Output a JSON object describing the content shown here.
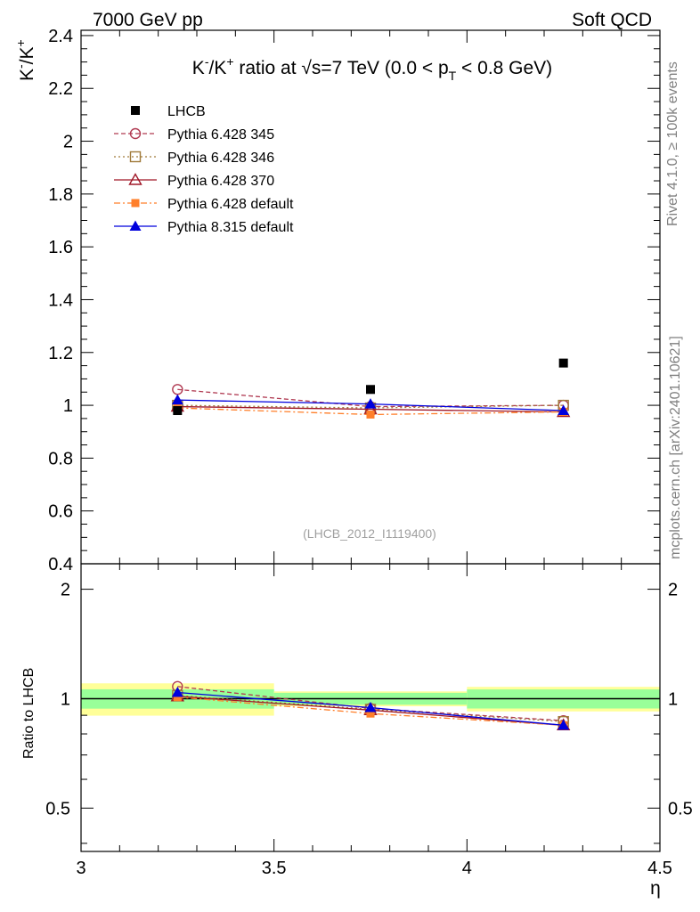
{
  "header": {
    "left": "7000 GeV pp",
    "right": "Soft QCD"
  },
  "side_labels": {
    "rivet": "Rivet 4.1.0, ≥ 100k events",
    "mcplots": "mcplots.cern.ch [arXiv:2401.10621]"
  },
  "chart_data": {
    "type": "scatter",
    "title_parts": {
      "a": "K",
      "a_sup": "-",
      "b": "/K",
      "b_sup": "+",
      "c": " ratio at ",
      "sqrt": "√",
      "d": "s=7 TeV (0.0 < p",
      "d_sub": "T",
      "e": " < 0.8 GeV)"
    },
    "ylabel_parts": {
      "a": "K",
      "a_sup": "-",
      "b": "/K",
      "b_sup": "+"
    },
    "xlabel": "η",
    "ratio_ylabel": "Ratio to LHCB",
    "watermark": "(LHCB_2012_I1119400)",
    "xlim": [
      3.0,
      4.5
    ],
    "ylim": [
      0.4,
      2.42
    ],
    "ratio_ylim": [
      0.38,
      2.35
    ],
    "x_ticks": [
      "3",
      "3.5",
      "4",
      "4.5"
    ],
    "x_tick_values": [
      3.0,
      3.5,
      4.0,
      4.5
    ],
    "y_ticks": [
      "0.4",
      "0.6",
      "0.8",
      "1",
      "1.2",
      "1.4",
      "1.6",
      "1.8",
      "2",
      "2.2",
      "2.4"
    ],
    "y_tick_values": [
      0.4,
      0.6,
      0.8,
      1.0,
      1.2,
      1.4,
      1.6,
      1.8,
      2.0,
      2.2,
      2.4
    ],
    "ratio_ticks": [
      "0.5",
      "1",
      "2"
    ],
    "ratio_tick_values": [
      0.5,
      1.0,
      2.0
    ],
    "bins": [
      [
        3.0,
        3.5
      ],
      [
        3.5,
        4.0
      ],
      [
        4.0,
        4.5
      ]
    ],
    "x": [
      3.25,
      3.75,
      4.25
    ],
    "data": {
      "name": "LHCB",
      "values": [
        0.98,
        1.06,
        1.16
      ],
      "band_inner": [
        0.06,
        0.04,
        0.07
      ],
      "band_outer": [
        0.1,
        0.05,
        0.09
      ]
    },
    "series": [
      {
        "name": "Pythia 6.428 345",
        "color": "#b03a52",
        "dash": "5,3",
        "marker": "open-circle",
        "values": [
          1.06,
          0.995,
          1.0
        ],
        "ratio": [
          1.08,
          0.94,
          0.87
        ]
      },
      {
        "name": "Pythia 6.428 346",
        "color": "#a07a3a",
        "dash": "2,3",
        "marker": "open-square",
        "values": [
          1.0,
          0.99,
          1.0
        ],
        "ratio": [
          1.02,
          0.935,
          0.865
        ]
      },
      {
        "name": "Pythia 6.428 370",
        "color": "#a01828",
        "dash": "",
        "marker": "open-triangle",
        "values": [
          0.995,
          0.985,
          0.975
        ],
        "ratio": [
          1.015,
          0.93,
          0.845
        ]
      },
      {
        "name": "Pythia 6.428 default",
        "color": "#ff7f2a",
        "dash": "7,3,2,3",
        "marker": "filled-square",
        "values": [
          0.99,
          0.965,
          0.975
        ],
        "ratio": [
          1.01,
          0.91,
          0.845
        ]
      },
      {
        "name": "Pythia 8.315 default",
        "color": "#0000dd",
        "dash": "",
        "marker": "filled-triangle",
        "values": [
          1.02,
          1.005,
          0.98
        ],
        "ratio": [
          1.04,
          0.945,
          0.845
        ]
      }
    ]
  }
}
